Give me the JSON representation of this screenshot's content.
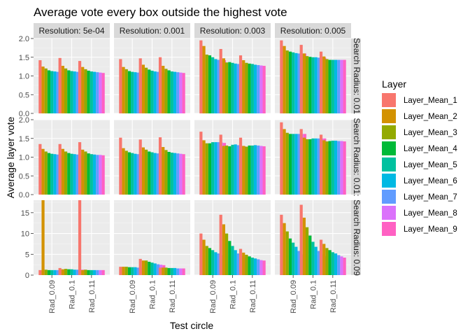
{
  "chart_data": {
    "type": "bar",
    "title": "Average vote every box outside the highest vote",
    "xlabel": "Test circle",
    "ylabel": "Average layer vote",
    "categories": [
      "Rad_0.09",
      "Rad_0.1",
      "Rad_0.11"
    ],
    "layers": [
      "Layer_Mean_1",
      "Layer_Mean_2",
      "Layer_Mean_3",
      "Layer_Mean_4",
      "Layer_Mean_5",
      "Layer_Mean_6",
      "Layer_Mean_7",
      "Layer_Mean_8",
      "Layer_Mean_9"
    ],
    "colors": [
      "#F8766D",
      "#D39200",
      "#93AA00",
      "#00BA38",
      "#00C19F",
      "#00B9E3",
      "#619CFF",
      "#DB72FB",
      "#FF61C3"
    ],
    "legend": {
      "title": "Layer",
      "position": "right"
    },
    "grid": true,
    "columns": [
      "Resolution: 5e-04",
      "Resolution: 0.001",
      "Resolution: 0.003",
      "Resolution: 0.005"
    ],
    "rows": [
      {
        "label": "Search Radius: 0.01",
        "ylim": [
          0,
          2.0
        ],
        "ticks": [
          "0.0",
          "0.5",
          "1.0",
          "1.5",
          "2.0"
        ],
        "tick_values": [
          0,
          0.5,
          1.0,
          1.5,
          2.0
        ],
        "panels": [
          [
            [
              1.42,
              1.25,
              1.2,
              1.15,
              1.13,
              1.12,
              1.11,
              1.1,
              1.09
            ],
            [
              1.48,
              1.27,
              1.2,
              1.15,
              1.13,
              1.12,
              1.11,
              1.1,
              1.09
            ],
            [
              1.4,
              1.24,
              1.18,
              1.14,
              1.12,
              1.11,
              1.1,
              1.09,
              1.08
            ]
          ],
          [
            [
              1.45,
              1.24,
              1.18,
              1.13,
              1.11,
              1.1,
              1.09,
              1.08,
              1.08
            ],
            [
              1.47,
              1.3,
              1.22,
              1.17,
              1.14,
              1.12,
              1.11,
              1.1,
              1.09
            ],
            [
              1.5,
              1.27,
              1.19,
              1.15,
              1.12,
              1.11,
              1.1,
              1.09,
              1.08
            ]
          ],
          [
            [
              1.95,
              1.8,
              1.57,
              1.55,
              1.5,
              1.45,
              1.43,
              1.42,
              1.42
            ],
            [
              1.72,
              1.47,
              1.36,
              1.37,
              1.35,
              1.33,
              1.32,
              1.31,
              1.3
            ],
            [
              1.55,
              1.42,
              1.35,
              1.33,
              1.32,
              1.3,
              1.29,
              1.28,
              1.27
            ]
          ],
          [
            [
              1.95,
              1.8,
              1.68,
              1.65,
              1.63,
              1.61,
              1.6,
              1.6,
              1.6
            ],
            [
              1.83,
              1.6,
              1.53,
              1.51,
              1.5,
              1.5,
              1.49,
              1.49,
              1.49
            ],
            [
              1.65,
              1.52,
              1.45,
              1.43,
              1.43,
              1.43,
              1.43,
              1.43,
              1.43
            ]
          ]
        ]
      },
      {
        "label": "Search Radius: 0.01:",
        "ylim": [
          0,
          2.0
        ],
        "ticks": [
          "0.0",
          "0.5",
          "1.0",
          "1.5",
          "2.0"
        ],
        "tick_values": [
          0,
          0.5,
          1.0,
          1.5,
          2.0
        ],
        "panels": [
          [
            [
              1.35,
              1.22,
              1.15,
              1.11,
              1.09,
              1.08,
              1.07,
              1.06,
              1.06
            ],
            [
              1.35,
              1.22,
              1.15,
              1.11,
              1.09,
              1.08,
              1.07,
              1.06,
              1.06
            ],
            [
              1.4,
              1.2,
              1.15,
              1.1,
              1.08,
              1.07,
              1.06,
              1.06,
              1.05
            ]
          ],
          [
            [
              1.52,
              1.24,
              1.17,
              1.13,
              1.11,
              1.09,
              1.08,
              1.07,
              1.07
            ],
            [
              1.47,
              1.26,
              1.2,
              1.15,
              1.13,
              1.11,
              1.1,
              1.09,
              1.08
            ],
            [
              1.53,
              1.27,
              1.19,
              1.14,
              1.12,
              1.11,
              1.1,
              1.09,
              1.08
            ]
          ],
          [
            [
              1.68,
              1.45,
              1.37,
              1.37,
              1.4,
              1.4,
              1.4,
              1.39,
              1.38
            ],
            [
              1.6,
              1.3,
              1.31,
              1.29,
              1.33,
              1.34,
              1.32,
              1.3,
              1.29
            ],
            [
              1.52,
              1.3,
              1.28,
              1.31,
              1.31,
              1.32,
              1.31,
              1.3,
              1.29
            ]
          ],
          [
            [
              1.93,
              1.75,
              1.65,
              1.62,
              1.62,
              1.62,
              1.62,
              1.62,
              1.62
            ],
            [
              1.75,
              1.52,
              1.48,
              1.48,
              1.5,
              1.5,
              1.5,
              1.5,
              1.5
            ],
            [
              1.6,
              1.45,
              1.42,
              1.43,
              1.44,
              1.44,
              1.43,
              1.43,
              1.42
            ]
          ]
        ]
      },
      {
        "label": "Search Radius: 0.09",
        "ylim": [
          0,
          18
        ],
        "ticks": [
          "0",
          "5",
          "10",
          "15"
        ],
        "tick_values": [
          0,
          5,
          10,
          15
        ],
        "panels": [
          [
            [
              1.2,
              18.0,
              1.3,
              1.2,
              1.2,
              1.2,
              1.2,
              1.2,
              1.2
            ],
            [
              1.7,
              1.4,
              1.5,
              1.4,
              1.4,
              1.3,
              1.3,
              1.3,
              1.3
            ],
            [
              18.0,
              1.2,
              1.3,
              1.2,
              1.2,
              1.2,
              1.2,
              1.2,
              1.2
            ]
          ],
          [
            [
              2.0,
              2.0,
              2.0,
              1.9,
              1.9,
              1.9,
              1.8,
              1.8,
              1.8
            ],
            [
              3.9,
              3.5,
              3.5,
              3.2,
              3.0,
              2.8,
              2.6,
              2.5,
              2.4
            ],
            [
              1.8,
              1.8,
              1.8,
              1.7,
              1.7,
              1.7,
              1.6,
              1.6,
              1.6
            ]
          ],
          [
            [
              10.0,
              8.5,
              7.0,
              6.5,
              6.0,
              5.5,
              5.2,
              4.8,
              4.5
            ],
            [
              14.5,
              12.2,
              10.0,
              8.2,
              7.0,
              6.0,
              5.2,
              4.6,
              4.3
            ],
            [
              6.3,
              5.4,
              4.9,
              4.5,
              4.2,
              4.0,
              3.8,
              3.6,
              3.5
            ]
          ],
          [
            [
              14.5,
              12.5,
              10.5,
              8.8,
              7.8,
              6.8,
              5.8,
              5.0,
              4.6
            ],
            [
              16.9,
              13.8,
              11.5,
              9.5,
              8.0,
              6.8,
              5.8,
              5.0,
              4.5
            ],
            [
              8.5,
              7.5,
              6.5,
              6.0,
              5.5,
              5.2,
              4.8,
              4.5,
              4.2
            ]
          ]
        ]
      }
    ]
  }
}
